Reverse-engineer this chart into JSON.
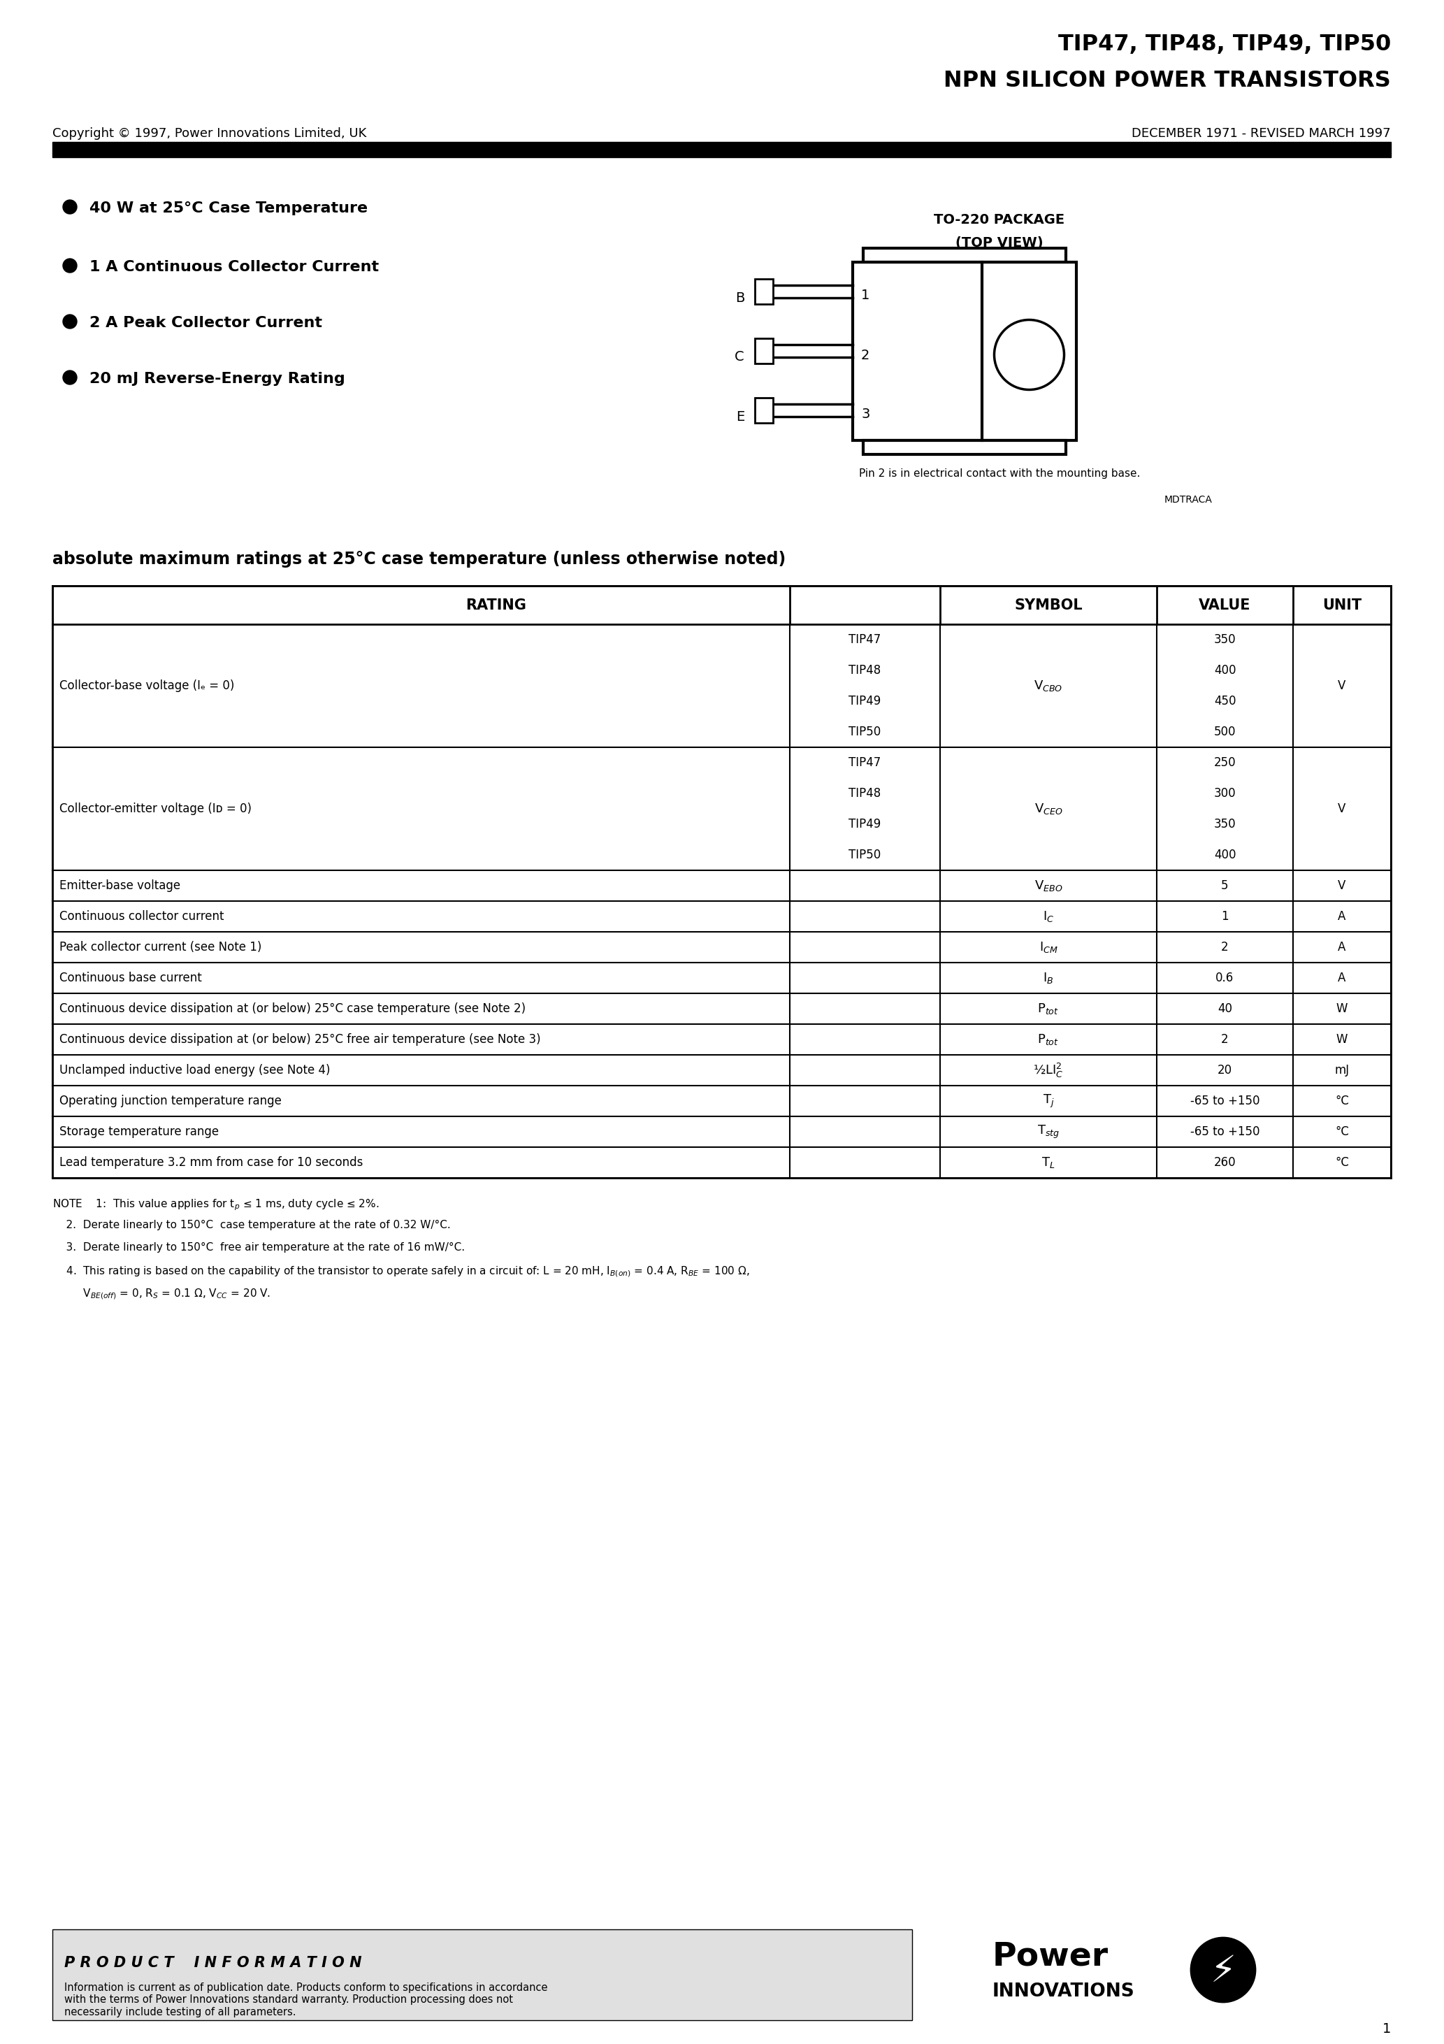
{
  "title_line1": "TIP47, TIP48, TIP49, TIP50",
  "title_line2": "NPN SILICON POWER TRANSISTORS",
  "copyright": "Copyright © 1997, Power Innovations Limited, UK",
  "date_info": "DECEMBER 1971 - REVISED MARCH 1997",
  "features": [
    "40 W at 25°C Case Temperature",
    "1 A Continuous Collector Current",
    "2 A Peak Collector Current",
    "20 mJ Reverse-Energy Rating"
  ],
  "pin_note": "Pin 2 is in electrical contact with the mounting base.",
  "pin_code": "MDTRACA",
  "section_title": "absolute maximum ratings at 25°C case temperature (unless otherwise noted)",
  "table_headers": [
    "RATING",
    "SYMBOL",
    "VALUE",
    "UNIT"
  ],
  "rows": [
    {
      "desc": "Collector-base voltage (Iₑ = 0)",
      "models": [
        "TIP47",
        "TIP48",
        "TIP49",
        "TIP50"
      ],
      "sym": "V$_{CBO}$",
      "vals": [
        "350",
        "400",
        "450",
        "500"
      ],
      "unit": "V"
    },
    {
      "desc": "Collector-emitter voltage (Iᴅ = 0)",
      "models": [
        "TIP47",
        "TIP48",
        "TIP49",
        "TIP50"
      ],
      "sym": "V$_{CEO}$",
      "vals": [
        "250",
        "300",
        "350",
        "400"
      ],
      "unit": "V"
    },
    {
      "desc": "Emitter-base voltage",
      "models": [],
      "sym": "V$_{EBO}$",
      "vals": [
        "5"
      ],
      "unit": "V"
    },
    {
      "desc": "Continuous collector current",
      "models": [],
      "sym": "I$_C$",
      "vals": [
        "1"
      ],
      "unit": "A"
    },
    {
      "desc": "Peak collector current (see Note 1)",
      "models": [],
      "sym": "I$_{CM}$",
      "vals": [
        "2"
      ],
      "unit": "A"
    },
    {
      "desc": "Continuous base current",
      "models": [],
      "sym": "I$_B$",
      "vals": [
        "0.6"
      ],
      "unit": "A"
    },
    {
      "desc": "Continuous device dissipation at (or below) 25°C case temperature (see Note 2)",
      "models": [],
      "sym": "P$_{tot}$",
      "vals": [
        "40"
      ],
      "unit": "W"
    },
    {
      "desc": "Continuous device dissipation at (or below) 25°C free air temperature (see Note 3)",
      "models": [],
      "sym": "P$_{tot}$",
      "vals": [
        "2"
      ],
      "unit": "W"
    },
    {
      "desc": "Unclamped inductive load energy (see Note 4)",
      "models": [],
      "sym": "½LI$_C^2$",
      "vals": [
        "20"
      ],
      "unit": "mJ"
    },
    {
      "desc": "Operating junction temperature range",
      "models": [],
      "sym": "T$_j$",
      "vals": [
        "-65 to +150"
      ],
      "unit": "°C"
    },
    {
      "desc": "Storage temperature range",
      "models": [],
      "sym": "T$_{stg}$",
      "vals": [
        "-65 to +150"
      ],
      "unit": "°C"
    },
    {
      "desc": "Lead temperature 3.2 mm from case for 10 seconds",
      "models": [],
      "sym": "T$_L$",
      "vals": [
        "260"
      ],
      "unit": "°C"
    }
  ],
  "notes": [
    "NOTE    1:  This value applies for t$_p$ ≤ 1 ms, duty cycle ≤ 2%.",
    "    2.  Derate linearly to 150°C  case temperature at the rate of 0.32 W/°C.",
    "    3.  Derate linearly to 150°C  free air temperature at the rate of 16 mW/°C.",
    "    4.  This rating is based on the capability of the transistor to operate safely in a circuit of: L = 20 mH, I$_{B(on)}$ = 0.4 A, R$_{BE}$ = 100 Ω,",
    "         V$_{BE(off)}$ = 0, R$_S$ = 0.1 Ω, V$_{CC}$ = 20 V."
  ],
  "footer_text": "P R O D U C T    I N F O R M A T I O N",
  "footer_info": "Information is current as of publication date. Products conform to specifications in accordance\nwith the terms of Power Innovations standard warranty. Production processing does not\nnecessarily include testing of all parameters.",
  "page_num": "1"
}
